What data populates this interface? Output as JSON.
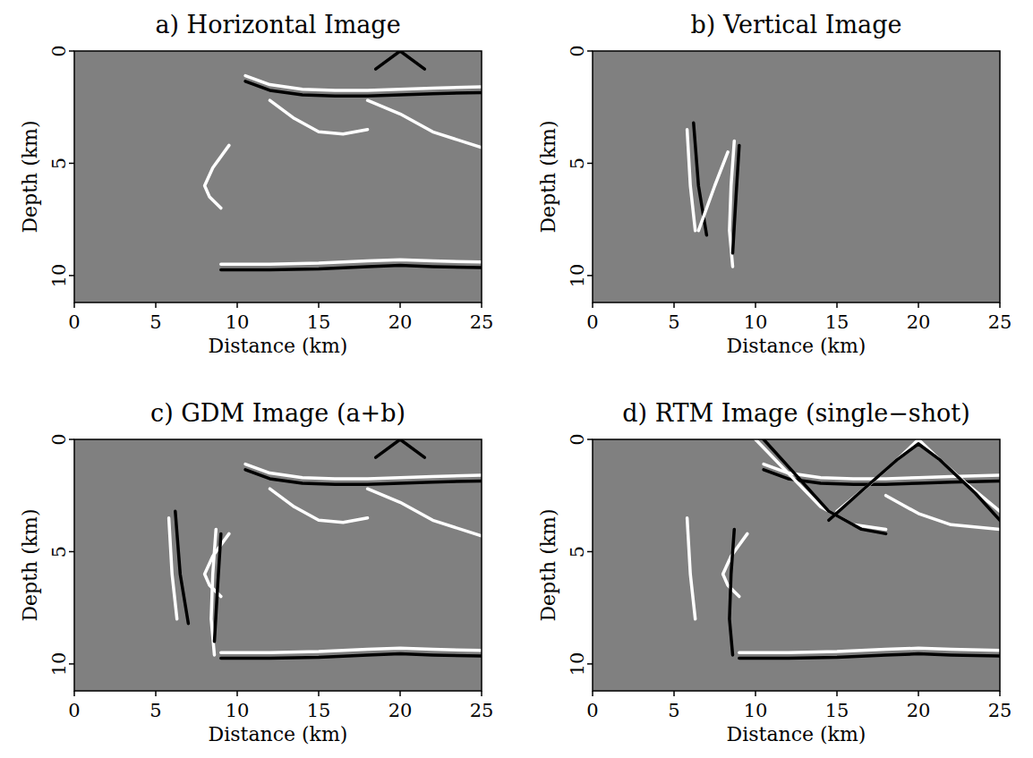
{
  "chart_data": [
    {
      "type": "image",
      "title": "a) Horizontal Image",
      "x_label": "Distance (km)",
      "y_label": "Depth (km)",
      "xlim": [
        0,
        25
      ],
      "ylim": [
        0,
        11.2
      ],
      "xticks": [
        0,
        5,
        10,
        15,
        20,
        25
      ],
      "yticks": [
        0,
        5,
        10
      ],
      "series": [
        {
          "color": "#ffffff",
          "x": [
            10.5,
            12,
            14,
            16,
            18,
            20,
            22,
            25
          ],
          "values": [
            1.1,
            1.5,
            1.7,
            1.75,
            1.75,
            1.7,
            1.65,
            1.6
          ]
        },
        {
          "color": "#000000",
          "x": [
            10.5,
            12,
            14,
            16,
            18,
            20,
            22,
            25
          ],
          "values": [
            1.35,
            1.75,
            1.95,
            2.0,
            2.0,
            1.95,
            1.9,
            1.85
          ]
        },
        {
          "color": "#ffffff",
          "x": [
            12,
            13.5,
            15,
            16.5,
            18
          ],
          "values": [
            2.2,
            3.0,
            3.6,
            3.7,
            3.5
          ]
        },
        {
          "color": "#ffffff",
          "x": [
            18,
            20,
            22,
            25
          ],
          "values": [
            2.2,
            2.8,
            3.6,
            4.3
          ]
        },
        {
          "color": "#ffffff",
          "x": [
            9,
            12,
            15,
            18,
            20,
            22,
            25
          ],
          "values": [
            9.5,
            9.5,
            9.45,
            9.35,
            9.3,
            9.35,
            9.4
          ]
        },
        {
          "color": "#000000",
          "x": [
            9,
            12,
            15,
            18,
            20,
            22,
            25
          ],
          "values": [
            9.75,
            9.75,
            9.7,
            9.6,
            9.55,
            9.6,
            9.65
          ]
        },
        {
          "color": "#ffffff",
          "x": [
            9.5,
            8.5,
            8,
            8.3,
            9
          ],
          "values": [
            4.2,
            5.2,
            6,
            6.5,
            7
          ]
        },
        {
          "color": "#000000",
          "x": [
            18.5,
            20,
            21.5
          ],
          "values": [
            0.8,
            0,
            0.8
          ]
        }
      ]
    },
    {
      "type": "image",
      "title": "b) Vertical Image",
      "x_label": "Distance (km)",
      "y_label": "Depth (km)",
      "xlim": [
        0,
        25
      ],
      "ylim": [
        0,
        11.2
      ],
      "xticks": [
        0,
        5,
        10,
        15,
        20,
        25
      ],
      "yticks": [
        0,
        5,
        10
      ],
      "series": [
        {
          "color": "#ffffff",
          "x": [
            5.8,
            6.0,
            6.3
          ],
          "values": [
            3.5,
            6,
            8
          ]
        },
        {
          "color": "#000000",
          "x": [
            6.2,
            6.5,
            7.0
          ],
          "values": [
            3.2,
            6,
            8.2
          ]
        },
        {
          "color": "#ffffff",
          "x": [
            8.7,
            8.5,
            8.4,
            8.6
          ],
          "values": [
            4,
            6,
            8,
            9.6
          ]
        },
        {
          "color": "#000000",
          "x": [
            9.0,
            8.8,
            8.6
          ],
          "values": [
            4.2,
            6.5,
            9
          ]
        },
        {
          "color": "#ffffff",
          "x": [
            6.5,
            7.5,
            8.3
          ],
          "values": [
            8,
            6,
            4.5
          ]
        }
      ]
    },
    {
      "type": "image",
      "title": "c) GDM Image (a+b)",
      "x_label": "Distance (km)",
      "y_label": "Depth (km)",
      "xlim": [
        0,
        25
      ],
      "ylim": [
        0,
        11.2
      ],
      "xticks": [
        0,
        5,
        10,
        15,
        20,
        25
      ],
      "yticks": [
        0,
        5,
        10
      ],
      "series": [
        {
          "color": "#ffffff",
          "x": [
            10.5,
            12,
            14,
            16,
            18,
            20,
            22,
            25
          ],
          "values": [
            1.1,
            1.5,
            1.7,
            1.75,
            1.75,
            1.7,
            1.65,
            1.6
          ]
        },
        {
          "color": "#000000",
          "x": [
            10.5,
            12,
            14,
            16,
            18,
            20,
            22,
            25
          ],
          "values": [
            1.35,
            1.75,
            1.95,
            2.0,
            2.0,
            1.95,
            1.9,
            1.85
          ]
        },
        {
          "color": "#ffffff",
          "x": [
            12,
            13.5,
            15,
            16.5,
            18
          ],
          "values": [
            2.2,
            3.0,
            3.6,
            3.7,
            3.5
          ]
        },
        {
          "color": "#ffffff",
          "x": [
            18,
            20,
            22,
            25
          ],
          "values": [
            2.2,
            2.8,
            3.6,
            4.3
          ]
        },
        {
          "color": "#ffffff",
          "x": [
            9,
            12,
            15,
            18,
            20,
            22,
            25
          ],
          "values": [
            9.5,
            9.5,
            9.45,
            9.35,
            9.3,
            9.35,
            9.4
          ]
        },
        {
          "color": "#000000",
          "x": [
            9,
            12,
            15,
            18,
            20,
            22,
            25
          ],
          "values": [
            9.75,
            9.75,
            9.7,
            9.6,
            9.55,
            9.6,
            9.65
          ]
        },
        {
          "color": "#ffffff",
          "x": [
            9.5,
            8.5,
            8,
            8.3,
            9
          ],
          "values": [
            4.2,
            5.2,
            6,
            6.5,
            7
          ]
        },
        {
          "color": "#000000",
          "x": [
            18.5,
            20,
            21.5
          ],
          "values": [
            0.8,
            0,
            0.8
          ]
        },
        {
          "color": "#ffffff",
          "x": [
            5.8,
            6.0,
            6.3
          ],
          "values": [
            3.5,
            6,
            8
          ]
        },
        {
          "color": "#000000",
          "x": [
            6.2,
            6.5,
            7.0
          ],
          "values": [
            3.2,
            6,
            8.2
          ]
        },
        {
          "color": "#ffffff",
          "x": [
            8.7,
            8.5,
            8.4,
            8.6
          ],
          "values": [
            4,
            6,
            8,
            9.6
          ]
        },
        {
          "color": "#000000",
          "x": [
            9.0,
            8.8,
            8.6
          ],
          "values": [
            4.2,
            6.5,
            9
          ]
        }
      ]
    },
    {
      "type": "image",
      "title": "d) RTM Image (single−shot)",
      "x_label": "Distance (km)",
      "y_label": "Depth (km)",
      "xlim": [
        0,
        25
      ],
      "ylim": [
        0,
        11.2
      ],
      "xticks": [
        0,
        5,
        10,
        15,
        20,
        25
      ],
      "yticks": [
        0,
        5,
        10
      ],
      "series": [
        {
          "color": "#ffffff",
          "x": [
            10.5,
            12,
            14,
            16,
            18,
            20,
            22,
            25
          ],
          "values": [
            1.1,
            1.5,
            1.7,
            1.75,
            1.75,
            1.7,
            1.65,
            1.6
          ]
        },
        {
          "color": "#000000",
          "x": [
            10.5,
            12,
            14,
            16,
            18,
            20,
            22,
            25
          ],
          "values": [
            1.35,
            1.75,
            1.95,
            2.0,
            2.0,
            1.95,
            1.9,
            1.85
          ]
        },
        {
          "color": "#ffffff",
          "x": [
            10,
            12,
            14,
            16,
            18
          ],
          "values": [
            0,
            1.5,
            3,
            3.8,
            4
          ]
        },
        {
          "color": "#000000",
          "x": [
            10.5,
            12.5,
            14.5,
            16.5,
            18
          ],
          "values": [
            0,
            1.6,
            3.2,
            4.0,
            4.2
          ]
        },
        {
          "color": "#ffffff",
          "x": [
            15,
            17,
            19,
            20,
            21,
            23,
            25
          ],
          "values": [
            3.2,
            2,
            0.7,
            0,
            0.7,
            2,
            3.2
          ]
        },
        {
          "color": "#000000",
          "x": [
            14.5,
            16.5,
            18.7,
            20,
            21.3,
            23.5,
            25
          ],
          "values": [
            3.6,
            2.3,
            0.9,
            0.2,
            0.9,
            2.4,
            3.6
          ]
        },
        {
          "color": "#ffffff",
          "x": [
            18,
            20,
            22,
            25
          ],
          "values": [
            2.5,
            3.3,
            3.8,
            4.0
          ]
        },
        {
          "color": "#ffffff",
          "x": [
            9,
            12,
            15,
            18,
            20,
            22,
            25
          ],
          "values": [
            9.5,
            9.5,
            9.45,
            9.35,
            9.3,
            9.35,
            9.4
          ]
        },
        {
          "color": "#000000",
          "x": [
            9,
            12,
            15,
            18,
            20,
            22,
            25
          ],
          "values": [
            9.75,
            9.75,
            9.7,
            9.6,
            9.55,
            9.6,
            9.65
          ]
        },
        {
          "color": "#ffffff",
          "x": [
            9.5,
            8.5,
            8,
            8.3,
            9
          ],
          "values": [
            4.2,
            5.2,
            6,
            6.5,
            7
          ]
        },
        {
          "color": "#ffffff",
          "x": [
            5.8,
            6.0,
            6.3
          ],
          "values": [
            3.5,
            6,
            8
          ]
        },
        {
          "color": "#000000",
          "x": [
            8.7,
            8.5,
            8.4,
            8.6
          ],
          "values": [
            4,
            6,
            8,
            9.6
          ]
        }
      ]
    }
  ]
}
